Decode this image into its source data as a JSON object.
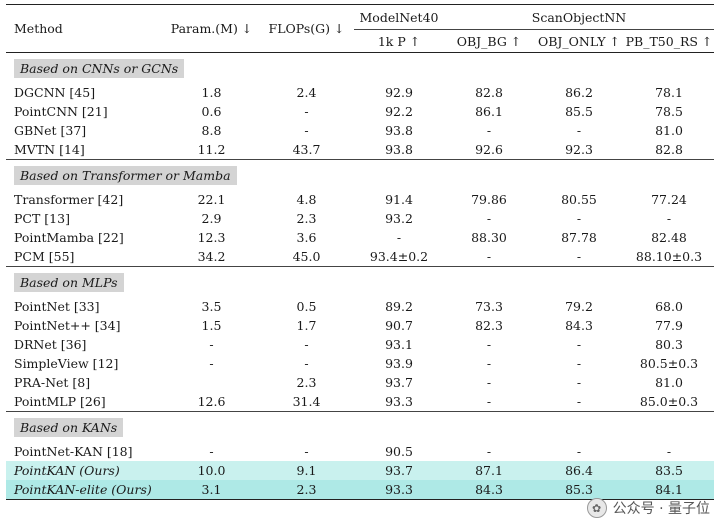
{
  "headers": {
    "method": "Method",
    "param": "Param.(M) ↓",
    "flops": "FLOPs(G) ↓",
    "modelnet": "ModelNet40",
    "scanobject": "ScanObjectNN",
    "kp": "1k P ↑",
    "obj_bg": "OBJ_BG ↑",
    "obj_only": "OBJ_ONLY ↑",
    "pb": "PB_T50_RS ↑"
  },
  "sections": [
    {
      "label": "Based on CNNs or GCNs",
      "rows": [
        {
          "method": "DGCNN [45]",
          "param": "1.8",
          "flops": "2.4",
          "mn": "92.9",
          "bg": "82.8",
          "only": "86.2",
          "pb": "78.1"
        },
        {
          "method": "PointCNN [21]",
          "param": "0.6",
          "flops": "-",
          "mn": "92.2",
          "bg": "86.1",
          "only": "85.5",
          "pb": "78.5"
        },
        {
          "method": "GBNet [37]",
          "param": "8.8",
          "flops": "-",
          "mn": "93.8",
          "bg": "-",
          "only": "-",
          "pb": "81.0"
        },
        {
          "method": "MVTN [14]",
          "param": "11.2",
          "flops": "43.7",
          "mn": "93.8",
          "bg": "92.6",
          "only": "92.3",
          "pb": "82.8"
        }
      ]
    },
    {
      "label": "Based on Transformer or Mamba",
      "rows": [
        {
          "method": "Transformer [42]",
          "param": "22.1",
          "flops": "4.8",
          "mn": "91.4",
          "bg": "79.86",
          "only": "80.55",
          "pb": "77.24"
        },
        {
          "method": "PCT [13]",
          "param": "2.9",
          "flops": "2.3",
          "mn": "93.2",
          "bg": "-",
          "only": "-",
          "pb": "-"
        },
        {
          "method": "PointMamba [22]",
          "param": "12.3",
          "flops": "3.6",
          "mn": "-",
          "bg": "88.30",
          "only": "87.78",
          "pb": "82.48"
        },
        {
          "method": "PCM [55]",
          "param": "34.2",
          "flops": "45.0",
          "mn": "93.4±0.2",
          "bg": "-",
          "only": "-",
          "pb": "88.10±0.3"
        }
      ]
    },
    {
      "label": "Based on MLPs",
      "rows": [
        {
          "method": "PointNet [33]",
          "param": "3.5",
          "flops": "0.5",
          "mn": "89.2",
          "bg": "73.3",
          "only": "79.2",
          "pb": "68.0"
        },
        {
          "method": "PointNet++ [34]",
          "param": "1.5",
          "flops": "1.7",
          "mn": "90.7",
          "bg": "82.3",
          "only": "84.3",
          "pb": "77.9"
        },
        {
          "method": "DRNet [36]",
          "param": "-",
          "flops": "-",
          "mn": "93.1",
          "bg": "-",
          "only": "-",
          "pb": "80.3"
        },
        {
          "method": "SimpleView [12]",
          "param": "-",
          "flops": "-",
          "mn": "93.9",
          "bg": "-",
          "only": "-",
          "pb": "80.5±0.3"
        },
        {
          "method": "PRA-Net [8]",
          "param": "",
          "flops": "2.3",
          "mn": "93.7",
          "bg": "-",
          "only": "-",
          "pb": "81.0"
        },
        {
          "method": "PointMLP [26]",
          "param": "12.6",
          "flops": "31.4",
          "mn": "93.3",
          "bg": "-",
          "only": "-",
          "pb": "85.0±0.3"
        }
      ]
    },
    {
      "label": "Based on KANs",
      "rows": [
        {
          "method": "PointNet-KAN [18]",
          "param": "-",
          "flops": "-",
          "mn": "90.5",
          "bg": "-",
          "only": "-",
          "pb": "-"
        },
        {
          "method": "PointKAN (Ours)",
          "param": "10.0",
          "flops": "9.1",
          "mn": "93.7",
          "bg": "87.1",
          "only": "86.4",
          "pb": "83.5",
          "highlight": "light"
        },
        {
          "method": "PointKAN-elite (Ours)",
          "param": "3.1",
          "flops": "2.3",
          "mn": "93.3",
          "bg": "84.3",
          "only": "85.3",
          "pb": "84.1",
          "highlight": "strong"
        }
      ]
    }
  ],
  "watermark": "公众号 · 量子位"
}
